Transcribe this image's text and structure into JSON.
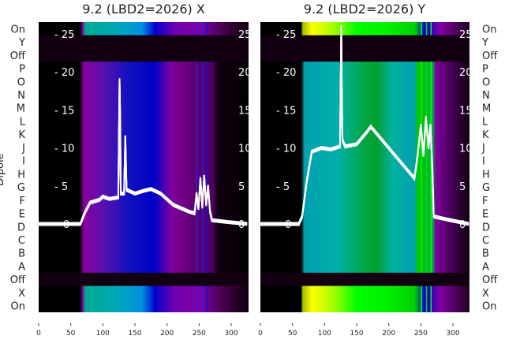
{
  "chart_data": {
    "type": "heatmap",
    "ylabel_left": "Dipole",
    "row_labels": [
      "On",
      "Y",
      "Off",
      "P",
      "O",
      "N",
      "M",
      "L",
      "K",
      "J",
      "I",
      "H",
      "G",
      "F",
      "E",
      "D",
      "C",
      "B",
      "A",
      "Off",
      "X",
      "On"
    ],
    "row_kinds": [
      "on",
      "off",
      "off",
      "dip",
      "dip",
      "dip",
      "dip",
      "dip",
      "dip",
      "dip",
      "dip",
      "dip",
      "dip",
      "dip",
      "dip",
      "dip",
      "dip",
      "dip",
      "dip",
      "off",
      "on",
      "on"
    ],
    "xlim": [
      0,
      325
    ],
    "xticks": [
      0,
      50,
      100,
      150,
      200,
      250,
      300
    ],
    "curve_ylim": [
      0,
      25
    ],
    "curve_yticks": [
      0,
      5,
      10,
      15,
      20,
      25
    ],
    "off_color": "#120012",
    "panels": [
      {
        "title": "9.2 (LBD2=2026) X",
        "dip_gradient": [
          [
            0,
            "#000000"
          ],
          [
            64,
            "#000000"
          ],
          [
            70,
            "#8a00a0"
          ],
          [
            100,
            "#5a10b0"
          ],
          [
            140,
            "#1010c0"
          ],
          [
            180,
            "#0000c8"
          ],
          [
            205,
            "#8000a0"
          ],
          [
            240,
            "#600070"
          ],
          [
            270,
            "#500060"
          ],
          [
            276,
            "#140014"
          ],
          [
            325,
            "#000000"
          ]
        ],
        "on_gradient": [
          [
            0,
            "#000000"
          ],
          [
            64,
            "#000000"
          ],
          [
            68,
            "#8000a0"
          ],
          [
            72,
            "#00a890"
          ],
          [
            120,
            "#00a8b8"
          ],
          [
            160,
            "#0090e0"
          ],
          [
            180,
            "#0000d0"
          ],
          [
            210,
            "#7000b0"
          ],
          [
            250,
            "#8000a0"
          ],
          [
            300,
            "#300030"
          ],
          [
            325,
            "#100010"
          ]
        ],
        "lines": [
          [
            245,
            "#2020ff"
          ],
          [
            255,
            "#2020ff"
          ],
          [
            262,
            "#1010e0"
          ]
        ],
        "curve": [
          [
            0,
            0
          ],
          [
            65,
            0
          ],
          [
            72,
            1.5
          ],
          [
            80,
            2.8
          ],
          [
            95,
            3.2
          ],
          [
            100,
            3.6
          ],
          [
            110,
            3.3
          ],
          [
            124,
            3.5
          ],
          [
            126,
            19
          ],
          [
            127,
            14
          ],
          [
            128,
            4
          ],
          [
            133,
            4
          ],
          [
            135,
            11.5
          ],
          [
            137,
            4.5
          ],
          [
            150,
            4
          ],
          [
            165,
            4.4
          ],
          [
            175,
            4.6
          ],
          [
            190,
            4
          ],
          [
            210,
            2.5
          ],
          [
            235,
            1.6
          ],
          [
            243,
            1.4
          ],
          [
            246,
            4
          ],
          [
            249,
            2
          ],
          [
            252,
            6
          ],
          [
            255,
            2.2
          ],
          [
            258,
            6.3
          ],
          [
            261,
            2.5
          ],
          [
            264,
            5
          ],
          [
            267,
            1.6
          ],
          [
            270,
            0.5
          ],
          [
            290,
            0.3
          ],
          [
            325,
            0
          ]
        ]
      },
      {
        "title": "9.2 (LBD2=2026) Y",
        "dip_gradient": [
          [
            0,
            "#000000"
          ],
          [
            64,
            "#000000"
          ],
          [
            68,
            "#00a0b0"
          ],
          [
            120,
            "#00b0a8"
          ],
          [
            160,
            "#00a848"
          ],
          [
            180,
            "#00a030"
          ],
          [
            205,
            "#00b0a0"
          ],
          [
            240,
            "#00a0b0"
          ],
          [
            244,
            "#00c800"
          ],
          [
            268,
            "#00b040"
          ],
          [
            272,
            "#8000a0"
          ],
          [
            300,
            "#400050"
          ],
          [
            325,
            "#100010"
          ]
        ],
        "on_gradient": [
          [
            0,
            "#000000"
          ],
          [
            63,
            "#000000"
          ],
          [
            66,
            "#a0c000"
          ],
          [
            80,
            "#ffff00"
          ],
          [
            110,
            "#b0ff00"
          ],
          [
            150,
            "#00ff00"
          ],
          [
            200,
            "#00f000"
          ],
          [
            240,
            "#00d000"
          ],
          [
            255,
            "#0000d0"
          ],
          [
            280,
            "#8000a0"
          ],
          [
            325,
            "#200020"
          ]
        ],
        "lines": [
          [
            250,
            "#00ff00"
          ],
          [
            258,
            "#00e000"
          ],
          [
            265,
            "#00ff00"
          ]
        ],
        "curve": [
          [
            0,
            0
          ],
          [
            60,
            0
          ],
          [
            65,
            1
          ],
          [
            72,
            5.5
          ],
          [
            80,
            9.5
          ],
          [
            95,
            10
          ],
          [
            110,
            9.8
          ],
          [
            124,
            10.2
          ],
          [
            126,
            26
          ],
          [
            127,
            16
          ],
          [
            128,
            11
          ],
          [
            132,
            10.2
          ],
          [
            150,
            10.5
          ],
          [
            165,
            12
          ],
          [
            172,
            12.8
          ],
          [
            185,
            11.5
          ],
          [
            200,
            10
          ],
          [
            220,
            8
          ],
          [
            240,
            6
          ],
          [
            245,
            9
          ],
          [
            250,
            13
          ],
          [
            254,
            9
          ],
          [
            258,
            14
          ],
          [
            262,
            10
          ],
          [
            265,
            13
          ],
          [
            268,
            7
          ],
          [
            270,
            1
          ],
          [
            290,
            0.6
          ],
          [
            325,
            0
          ]
        ]
      }
    ]
  }
}
